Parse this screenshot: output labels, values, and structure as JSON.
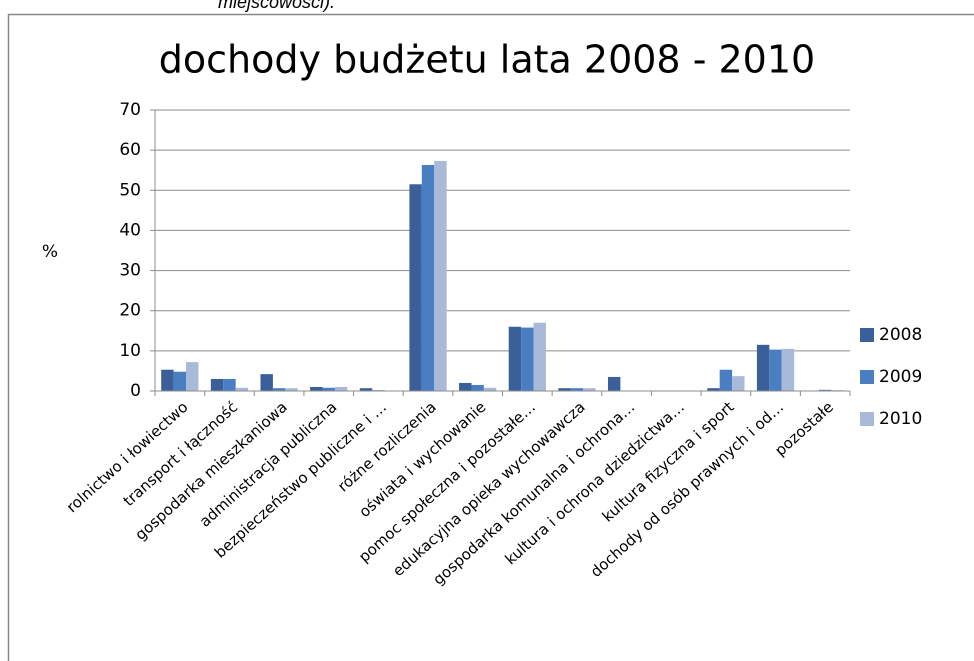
{
  "caption": "miejscowości).",
  "chart_data": {
    "type": "bar",
    "title": "dochody budżetu lata 2008 - 2010",
    "y_label": "%",
    "categories": [
      "rolnictwo i łowiectwo",
      "transport i łączność",
      "gospodarka mieszkaniowa",
      "administracja publiczna",
      "bezpieczeństwo publiczne i …",
      "różne rozliczenia",
      "oświata i wychowanie",
      "pomoc społeczna i pozostałe…",
      "edukacyjna opieka wychowawcza",
      "gospodarka komunalna i ochrona…",
      "kultura i ochrona dziedzictwa…",
      "kultura fizyczna i sport",
      "dochody od osób prawnych i od…",
      "pozostałe"
    ],
    "series": [
      {
        "name": "2008",
        "color": "#3b5f99",
        "values": [
          5.3,
          3,
          4.2,
          1,
          0.7,
          51.5,
          2,
          16,
          0.7,
          3.5,
          0,
          0.7,
          11.5,
          0
        ]
      },
      {
        "name": "2009",
        "color": "#4a7ec3",
        "values": [
          4.8,
          3,
          0.7,
          0.8,
          0.2,
          56.3,
          1.5,
          15.8,
          0.7,
          0,
          0,
          5.3,
          10.3,
          0.3
        ]
      },
      {
        "name": "2010",
        "color": "#a9b9d8",
        "values": [
          7.2,
          0.8,
          0.7,
          1,
          0,
          57.3,
          0.8,
          17,
          0.7,
          0,
          0,
          3.7,
          10.5,
          0.2
        ]
      }
    ],
    "ylim": [
      0,
      70
    ],
    "yticks": [
      0,
      10,
      20,
      30,
      40,
      50,
      60,
      70
    ],
    "grid": true,
    "legend": "right"
  }
}
